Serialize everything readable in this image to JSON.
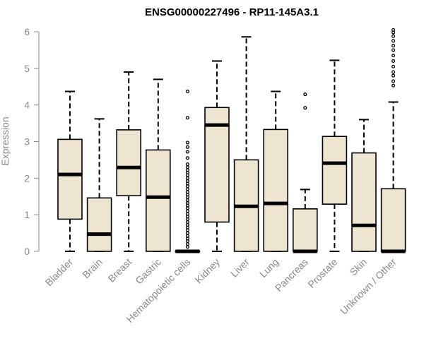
{
  "chart_data": {
    "type": "boxplot",
    "title": "ENSG00000227496 - RP11-145A3.1",
    "ylabel": "Expression",
    "xlabel": "",
    "ylim": [
      0,
      6.2
    ],
    "yticks": [
      0,
      1,
      2,
      3,
      4,
      5,
      6
    ],
    "box_fill": "#ede5cf",
    "box_stroke": "#000000",
    "outlier_stroke": "#000000",
    "categories": [
      "Bladder",
      "Brain",
      "Breast",
      "Gastric",
      "Hematopoietic cells",
      "Kidney",
      "Liver",
      "Lung",
      "Pancreas",
      "Prostate",
      "Skin",
      "Unknown / Other"
    ],
    "boxes": [
      {
        "category": "Bladder",
        "min": 0,
        "q1": 0.88,
        "median": 2.1,
        "q3": 3.06,
        "max": 4.37,
        "outliers": []
      },
      {
        "category": "Brain",
        "min": 0,
        "q1": 0,
        "median": 0.47,
        "q3": 1.46,
        "max": 3.62,
        "outliers": []
      },
      {
        "category": "Breast",
        "min": 0,
        "q1": 1.52,
        "median": 2.29,
        "q3": 3.32,
        "max": 4.9,
        "outliers": []
      },
      {
        "category": "Gastric",
        "min": 0,
        "q1": 0,
        "median": 1.48,
        "q3": 2.77,
        "max": 4.7,
        "outliers": []
      },
      {
        "category": "Hematopoietic cells",
        "min": 0,
        "q1": 0,
        "median": 0,
        "q3": 0.01,
        "max": 0.02,
        "outliers": [
          0.12,
          0.2,
          0.28,
          0.35,
          0.42,
          0.5,
          0.58,
          0.65,
          0.72,
          0.8,
          0.88,
          0.95,
          1.02,
          1.1,
          1.18,
          1.25,
          1.32,
          1.4,
          1.48,
          1.55,
          1.62,
          1.7,
          1.78,
          1.85,
          1.92,
          2.0,
          2.08,
          2.15,
          2.22,
          2.3,
          2.38,
          2.55,
          2.72,
          2.85,
          2.97,
          3.65,
          4.37
        ]
      },
      {
        "category": "Kidney",
        "min": 0,
        "q1": 0.8,
        "median": 3.45,
        "q3": 3.93,
        "max": 5.2,
        "outliers": []
      },
      {
        "category": "Liver",
        "min": 0,
        "q1": 0,
        "median": 1.23,
        "q3": 2.5,
        "max": 5.86,
        "outliers": []
      },
      {
        "category": "Lung",
        "min": 0,
        "q1": 0,
        "median": 1.31,
        "q3": 3.33,
        "max": 4.37,
        "outliers": []
      },
      {
        "category": "Pancreas",
        "min": 0,
        "q1": 0,
        "median": 0,
        "q3": 1.16,
        "max": 1.69,
        "outliers": [
          3.92,
          4.29
        ]
      },
      {
        "category": "Prostate",
        "min": 0,
        "q1": 1.29,
        "median": 2.41,
        "q3": 3.14,
        "max": 5.22,
        "outliers": []
      },
      {
        "category": "Skin",
        "min": 0,
        "q1": 0,
        "median": 0.71,
        "q3": 2.69,
        "max": 3.6,
        "outliers": []
      },
      {
        "category": "Unknown / Other",
        "min": 0,
        "q1": 0,
        "median": 0,
        "q3": 1.71,
        "max": 4.08,
        "outliers": [
          4.53,
          4.65,
          4.8,
          4.9,
          5.05,
          5.2,
          5.35,
          5.5,
          5.62,
          5.75,
          5.88,
          5.98,
          6.05
        ]
      }
    ]
  }
}
